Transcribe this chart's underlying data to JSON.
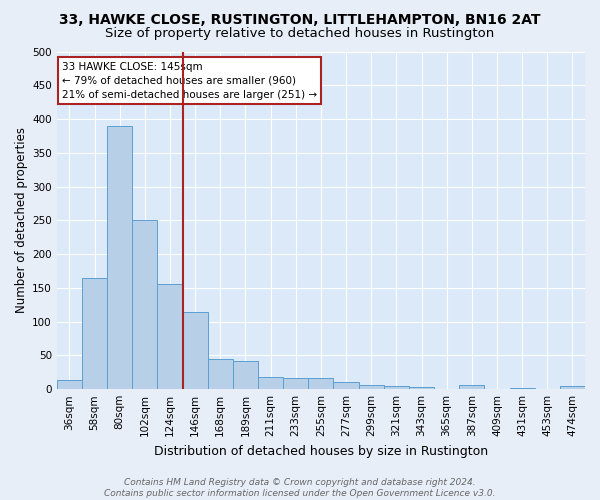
{
  "title": "33, HAWKE CLOSE, RUSTINGTON, LITTLEHAMPTON, BN16 2AT",
  "subtitle": "Size of property relative to detached houses in Rustington",
  "xlabel": "Distribution of detached houses by size in Rustington",
  "ylabel": "Number of detached properties",
  "categories": [
    "36sqm",
    "58sqm",
    "80sqm",
    "102sqm",
    "124sqm",
    "146sqm",
    "168sqm",
    "189sqm",
    "211sqm",
    "233sqm",
    "255sqm",
    "277sqm",
    "299sqm",
    "321sqm",
    "343sqm",
    "365sqm",
    "387sqm",
    "409sqm",
    "431sqm",
    "453sqm",
    "474sqm"
  ],
  "values": [
    13,
    165,
    390,
    250,
    155,
    115,
    45,
    42,
    18,
    16,
    16,
    10,
    6,
    5,
    3,
    0,
    6,
    1,
    2,
    0,
    4
  ],
  "bar_color": "#b8cfe8",
  "bar_edge_color": "#5a9fd4",
  "background_color": "#dce9f8",
  "grid_color": "#ffffff",
  "vline_color": "#aa2222",
  "annotation_title": "33 HAWKE CLOSE: 145sqm",
  "annotation_line1": "← 79% of detached houses are smaller (960)",
  "annotation_line2": "21% of semi-detached houses are larger (251) →",
  "annotation_box_color": "#ffffff",
  "annotation_box_edge": "#aa2222",
  "footer_line1": "Contains HM Land Registry data © Crown copyright and database right 2024.",
  "footer_line2": "Contains public sector information licensed under the Open Government Licence v3.0.",
  "fig_bg_color": "#e8eef8",
  "ylim": [
    0,
    500
  ],
  "title_fontsize": 10,
  "subtitle_fontsize": 9.5,
  "xlabel_fontsize": 9,
  "ylabel_fontsize": 8.5,
  "tick_fontsize": 7.5,
  "annot_fontsize": 7.5,
  "footer_fontsize": 6.5
}
